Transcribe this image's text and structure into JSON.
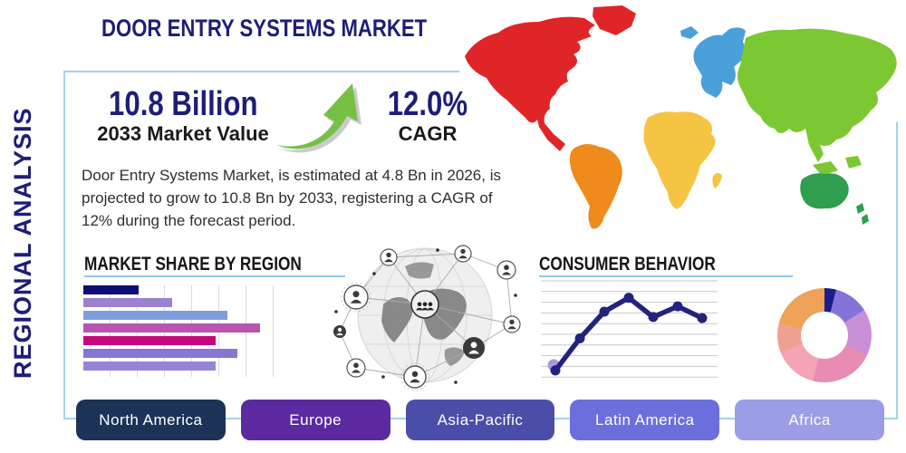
{
  "page": {
    "title": "DOOR ENTRY SYSTEMS MARKET",
    "side_label": "REGIONAL ANALYSIS"
  },
  "stats": {
    "market_value": "10.8 Billion",
    "market_value_caption": "2033 Market Value",
    "cagr_value": "12.0%",
    "cagr_caption": "CAGR"
  },
  "description": "Door Entry Systems Market, is estimated at 4.8 Bn in 2026, is projected to grow to 10.8 Bn by 2033, registering a CAGR of 12% during the forecast period.",
  "sections": {
    "market_share_title": "MARKET SHARE BY REGION",
    "consumer_behavior_title": "CONSUMER BEHAVIOR"
  },
  "footer": {
    "buttons": [
      {
        "label": "North America",
        "color": "#1c3357"
      },
      {
        "label": "Europe",
        "color": "#5b2aa1"
      },
      {
        "label": "Asia-Pacific",
        "color": "#4b4ea9"
      },
      {
        "label": "Latin America",
        "color": "#6b6edd"
      },
      {
        "label": "Africa",
        "color": "#9b9de6"
      }
    ]
  },
  "map": {
    "regions": [
      {
        "name": "north-america",
        "color": "#e02528"
      },
      {
        "name": "greenland",
        "color": "#e02528"
      },
      {
        "name": "south-america",
        "color": "#ef8a1c"
      },
      {
        "name": "europe",
        "color": "#4aa0d8"
      },
      {
        "name": "africa",
        "color": "#f6c443"
      },
      {
        "name": "asia",
        "color": "#7cc832"
      },
      {
        "name": "australia",
        "color": "#2f9e4e"
      }
    ]
  },
  "colors": {
    "accent_navy": "#1e1e78",
    "frame_blue": "#a5d3e9",
    "underline_blue": "#8fc8e8",
    "arrow_green": "#76c043"
  },
  "chart_data": [
    {
      "type": "bar",
      "title": "MARKET SHARE BY REGION",
      "orientation": "horizontal",
      "note": "bars unlabeled in source; values estimated as % of axis width",
      "values": [
        29,
        46,
        75,
        92,
        69,
        80,
        69
      ],
      "colors": [
        "#0e0e70",
        "#9b82cf",
        "#7f9ede",
        "#b855b0",
        "#c4087c",
        "#8677d2",
        "#9883d6"
      ],
      "xlim": [
        0,
        100
      ],
      "grid": "vertical"
    },
    {
      "type": "line",
      "title": "CONSUMER BEHAVIOR",
      "x": [
        1,
        2,
        3,
        4,
        5,
        6,
        7
      ],
      "values": [
        0.6,
        3.6,
        6.1,
        7.4,
        5.6,
        6.6,
        5.5
      ],
      "ylim": [
        0,
        9
      ],
      "grid": "horizontal",
      "line_color": "#23237d",
      "start_marker_color": "#a89ae0"
    },
    {
      "type": "pie",
      "donut": true,
      "note": "segments unlabeled in source; values estimated as %",
      "values": [
        4,
        12,
        16,
        22,
        15,
        10,
        21
      ],
      "colors": [
        "#1c1c8a",
        "#8474d8",
        "#c98fd6",
        "#e88cb4",
        "#f4a4b4",
        "#f0a090",
        "#eea258"
      ]
    }
  ]
}
